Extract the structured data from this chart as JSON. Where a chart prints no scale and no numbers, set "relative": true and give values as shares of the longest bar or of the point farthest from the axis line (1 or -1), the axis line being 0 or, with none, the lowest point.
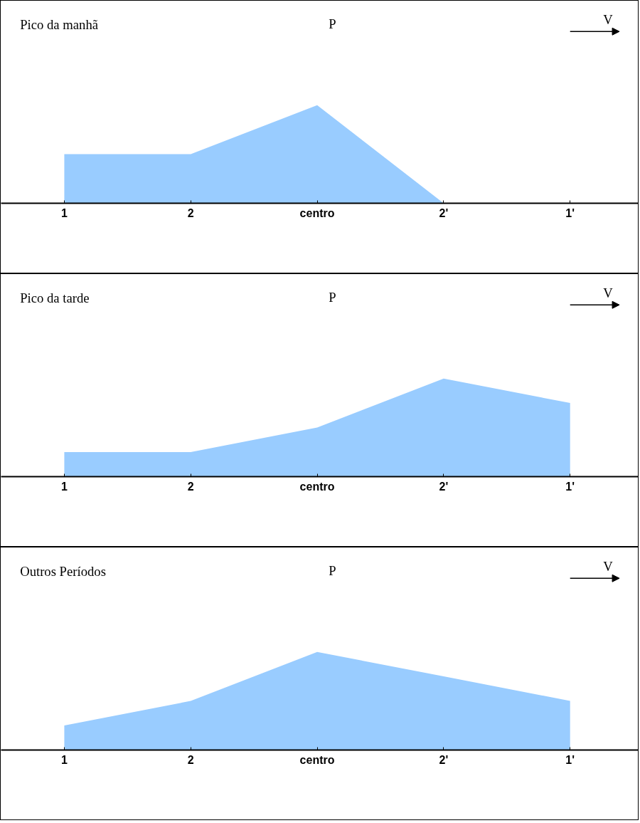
{
  "chart_data": [
    {
      "type": "area",
      "title": "Pico da manhã",
      "categories": [
        "1",
        "2",
        "centro",
        "2'",
        "1'"
      ],
      "values": [
        0.5,
        0.5,
        1,
        0,
        0
      ],
      "relative": true,
      "color": "#99ccff",
      "annotations": [
        "P",
        "V"
      ]
    },
    {
      "type": "area",
      "title": "Pico da tarde",
      "categories": [
        "1",
        "2",
        "centro",
        "2'",
        "1'"
      ],
      "values": [
        0.25,
        0.25,
        0.5,
        1,
        0.75
      ],
      "relative": true,
      "color": "#99ccff",
      "annotations": [
        "P",
        "V"
      ]
    },
    {
      "type": "area",
      "title": "Outros Períodos",
      "categories": [
        "1",
        "2",
        "centro",
        "2'",
        "1'"
      ],
      "values": [
        0.25,
        0.5,
        1,
        0.75,
        0.5
      ],
      "relative": true,
      "color": "#99ccff",
      "annotations": [
        "P",
        "V"
      ]
    }
  ]
}
